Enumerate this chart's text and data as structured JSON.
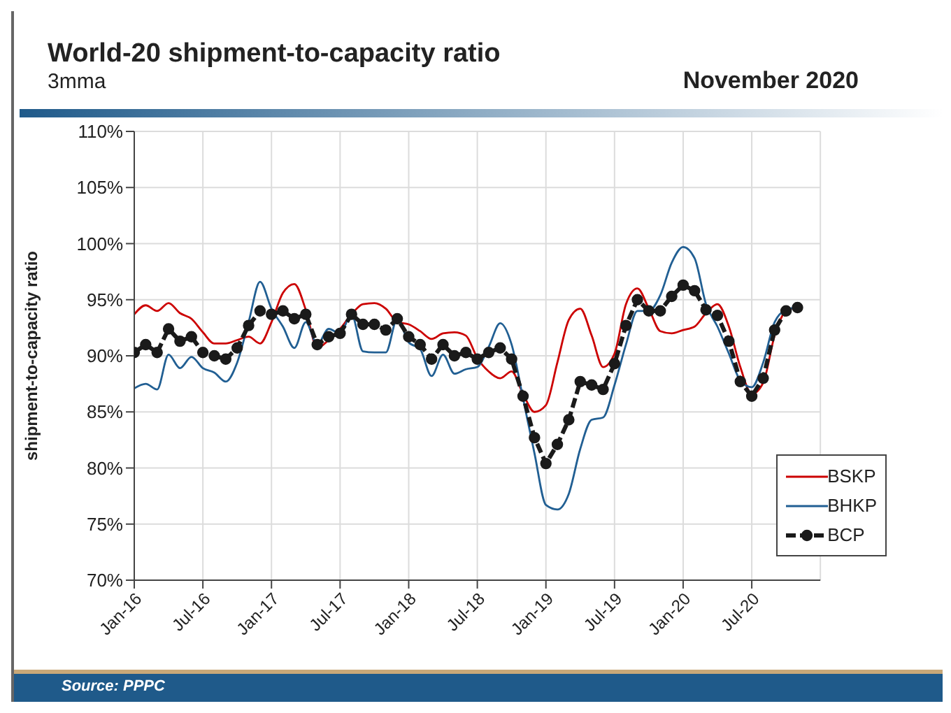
{
  "chart_data": {
    "type": "line",
    "title": "World-20 shipment-to-capacity ratio",
    "subtitle": "3mma",
    "annotations": [
      "November 2020",
      "Source:  PPPC"
    ],
    "ylabel": "shipment-to-capacity ratio",
    "x": [
      "2016-01",
      "2016-02",
      "2016-03",
      "2016-04",
      "2016-05",
      "2016-06",
      "2016-07",
      "2016-08",
      "2016-09",
      "2016-10",
      "2016-11",
      "2016-12",
      "2017-01",
      "2017-02",
      "2017-03",
      "2017-04",
      "2017-05",
      "2017-06",
      "2017-07",
      "2017-08",
      "2017-09",
      "2017-10",
      "2017-11",
      "2017-12",
      "2018-01",
      "2018-02",
      "2018-03",
      "2018-04",
      "2018-05",
      "2018-06",
      "2018-07",
      "2018-08",
      "2018-09",
      "2018-10",
      "2018-11",
      "2018-12",
      "2019-01",
      "2019-02",
      "2019-03",
      "2019-04",
      "2019-05",
      "2019-06",
      "2019-07",
      "2019-08",
      "2019-09",
      "2019-10",
      "2019-11",
      "2019-12",
      "2020-01",
      "2020-02",
      "2020-03",
      "2020-04",
      "2020-05",
      "2020-06",
      "2020-07",
      "2020-08",
      "2020-09",
      "2020-10",
      "2020-11"
    ],
    "series": [
      {
        "name": "BSKP",
        "color": "#cc0000",
        "marker": "none",
        "line_style": "solid",
        "values": [
          93.7,
          94.5,
          94.0,
          94.7,
          93.8,
          93.3,
          92.1,
          91.1,
          91.1,
          91.4,
          91.7,
          91.1,
          93.0,
          95.6,
          96.4,
          94.1,
          90.7,
          91.4,
          92.4,
          93.7,
          94.6,
          94.7,
          94.2,
          93.0,
          92.8,
          92.2,
          91.5,
          92.0,
          92.1,
          91.8,
          89.8,
          88.6,
          88.0,
          88.6,
          86.6,
          85.0,
          85.6,
          89.4,
          93.2,
          94.2,
          91.8,
          89.0,
          90.2,
          94.6,
          96.0,
          94.2,
          92.2,
          92.0,
          92.3,
          92.6,
          93.8,
          94.6,
          92.6,
          89.0,
          86.6,
          87.6,
          91.8,
          94.0,
          94.3
        ]
      },
      {
        "name": "BHKP",
        "color": "#215f93",
        "marker": "none",
        "line_style": "solid",
        "values": [
          87.1,
          87.5,
          87.0,
          90.1,
          88.9,
          89.9,
          88.9,
          88.5,
          87.7,
          89.4,
          93.0,
          96.6,
          94.2,
          92.6,
          90.7,
          93.0,
          91.0,
          92.4,
          92.0,
          93.7,
          90.4,
          90.3,
          90.3,
          93.3,
          91.2,
          90.6,
          88.2,
          90.1,
          88.4,
          88.8,
          89.0,
          90.8,
          92.9,
          91.0,
          86.2,
          81.3,
          76.7,
          76.3,
          77.7,
          81.7,
          84.3,
          84.5,
          87.4,
          91.0,
          94.0,
          94.0,
          95.4,
          98.3,
          99.7,
          98.7,
          94.6,
          92.6,
          90.2,
          87.8,
          87.2,
          89.4,
          93.0,
          94.1,
          94.3
        ]
      },
      {
        "name": "BCP",
        "color": "#1a1a1a",
        "marker": "circle",
        "line_style": "dashed",
        "values": [
          90.3,
          91.0,
          90.3,
          92.4,
          91.3,
          91.7,
          90.3,
          90.0,
          89.7,
          90.7,
          92.7,
          94.0,
          93.7,
          94.0,
          93.3,
          93.7,
          91.0,
          91.7,
          92.0,
          93.7,
          92.8,
          92.8,
          92.3,
          93.3,
          91.7,
          91.0,
          89.7,
          91.0,
          90.0,
          90.3,
          89.7,
          90.3,
          90.7,
          89.7,
          86.4,
          82.7,
          80.4,
          82.1,
          84.3,
          87.7,
          87.4,
          87.0,
          89.3,
          92.7,
          95.0,
          94.0,
          94.0,
          95.3,
          96.3,
          95.8,
          94.1,
          93.6,
          91.3,
          87.7,
          86.4,
          88.0,
          92.3,
          94.0,
          94.3
        ]
      }
    ],
    "xlim": [
      "2016-01",
      "2021-01"
    ],
    "xticks": [
      {
        "value": "2016-01",
        "label": "Jan-16"
      },
      {
        "value": "2016-07",
        "label": "Jul-16"
      },
      {
        "value": "2017-01",
        "label": "Jan-17"
      },
      {
        "value": "2017-07",
        "label": "Jul-17"
      },
      {
        "value": "2018-01",
        "label": "Jan-18"
      },
      {
        "value": "2018-07",
        "label": "Jul-18"
      },
      {
        "value": "2019-01",
        "label": "Jan-19"
      },
      {
        "value": "2019-07",
        "label": "Jul-19"
      },
      {
        "value": "2020-01",
        "label": "Jan-20"
      },
      {
        "value": "2020-07",
        "label": "Jul-20"
      }
    ],
    "ylim": [
      70,
      110
    ],
    "yticks": [
      {
        "value": 70,
        "label": "70%"
      },
      {
        "value": 75,
        "label": "75%"
      },
      {
        "value": 80,
        "label": "80%"
      },
      {
        "value": 85,
        "label": "85%"
      },
      {
        "value": 90,
        "label": "90%"
      },
      {
        "value": 95,
        "label": "95%"
      },
      {
        "value": 100,
        "label": "100%"
      },
      {
        "value": 105,
        "label": "105%"
      },
      {
        "value": 110,
        "label": "110%"
      }
    ],
    "grid": true,
    "legend": "bottom right"
  }
}
